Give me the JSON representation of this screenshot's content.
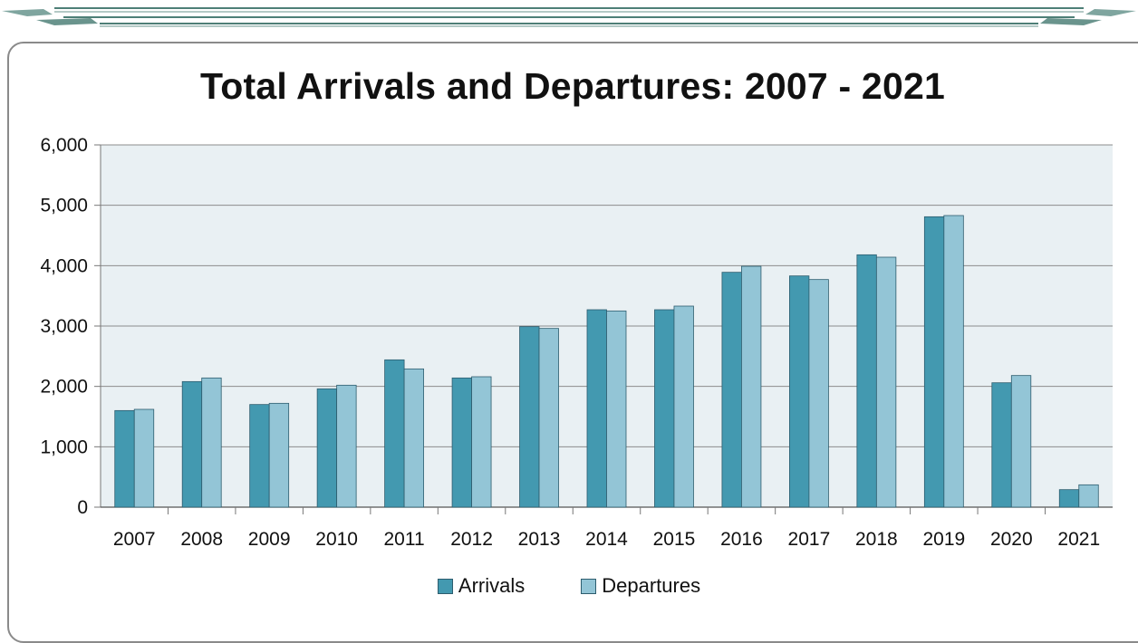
{
  "chart_data": {
    "type": "bar",
    "title": "Total Arrivals and Departures: 2007 - 2021",
    "xlabel": "",
    "ylabel": "",
    "ylim": [
      0,
      6000
    ],
    "yticks": [
      0,
      1000,
      2000,
      3000,
      4000,
      5000,
      6000
    ],
    "ytick_labels": [
      "0",
      "1,000",
      "2,000",
      "3,000",
      "4,000",
      "5,000",
      "6,000"
    ],
    "grid": true,
    "legend_position": "bottom",
    "categories": [
      "2007",
      "2008",
      "2009",
      "2010",
      "2011",
      "2012",
      "2013",
      "2014",
      "2015",
      "2016",
      "2017",
      "2018",
      "2019",
      "2020",
      "2021"
    ],
    "series": [
      {
        "name": "Arrivals",
        "color": "#4399b0",
        "values": [
          1600,
          2080,
          1700,
          1960,
          2440,
          2140,
          2990,
          3270,
          3270,
          3890,
          3830,
          4180,
          4810,
          2060,
          290
        ]
      },
      {
        "name": "Departures",
        "color": "#93c5d6",
        "values": [
          1620,
          2140,
          1720,
          2020,
          2290,
          2160,
          2960,
          3250,
          3330,
          3990,
          3770,
          4140,
          4830,
          2180,
          370
        ]
      }
    ]
  },
  "colors": {
    "plot_background": "#e9f0f3",
    "gridline": "#8c8c8c",
    "bar_outline": "#2d5d6e"
  }
}
